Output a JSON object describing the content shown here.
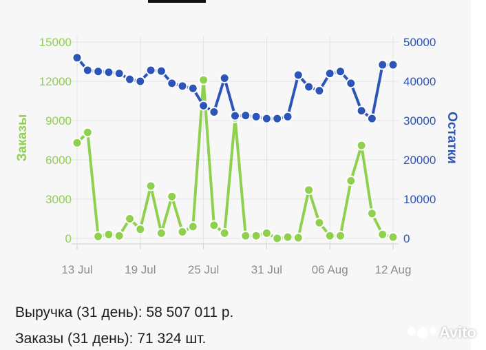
{
  "chart_data": {
    "type": "line",
    "x": [
      "13 Jul",
      "14 Jul",
      "15 Jul",
      "16 Jul",
      "17 Jul",
      "18 Jul",
      "19 Jul",
      "20 Jul",
      "21 Jul",
      "22 Jul",
      "23 Jul",
      "24 Jul",
      "25 Jul",
      "26 Jul",
      "27 Jul",
      "28 Jul",
      "29 Jul",
      "30 Jul",
      "31 Jul",
      "01 Aug",
      "02 Aug",
      "03 Aug",
      "04 Aug",
      "05 Aug",
      "06 Aug",
      "07 Aug",
      "08 Aug",
      "09 Aug",
      "10 Aug",
      "11 Aug",
      "12 Aug"
    ],
    "x_ticks": [
      "13 Jul",
      "19 Jul",
      "25 Jul",
      "31 Jul",
      "06 Aug",
      "12 Aug"
    ],
    "left_axis": {
      "label": "Заказы",
      "ylim": [
        0,
        15000
      ],
      "ticks": [
        "0",
        "3000",
        "6000",
        "9000",
        "12000",
        "15000"
      ],
      "color": "#8fd14f"
    },
    "right_axis": {
      "label": "Остатки",
      "ylim": [
        0,
        50000
      ],
      "ticks": [
        "0",
        "10000",
        "20000",
        "30000",
        "40000",
        "50000"
      ],
      "color": "#2d55b8"
    },
    "series": [
      {
        "name": "Заказы",
        "axis": "left",
        "color": "#8fd14f",
        "values": [
          7300,
          8100,
          150,
          300,
          200,
          1500,
          700,
          4000,
          400,
          3200,
          500,
          900,
          12100,
          1000,
          400,
          9200,
          200,
          200,
          400,
          0,
          100,
          50,
          3700,
          1200,
          200,
          200,
          4400,
          7100,
          1900,
          300,
          100
        ]
      },
      {
        "name": "Остатки",
        "axis": "right",
        "color": "#2d55b8",
        "values": [
          46000,
          42800,
          42500,
          42300,
          42000,
          40500,
          40000,
          42800,
          42600,
          39500,
          38800,
          38200,
          33800,
          32200,
          40800,
          31200,
          31300,
          31000,
          30500,
          30500,
          31000,
          41600,
          38600,
          37600,
          42000,
          42500,
          39500,
          32500,
          30500,
          44200,
          44200
        ]
      }
    ]
  },
  "summary": {
    "revenue": "Выручка (31 день): 58 507 011 р.",
    "orders": "Заказы (31 день): 71 324 шт."
  },
  "watermark": {
    "text": "Avito"
  }
}
